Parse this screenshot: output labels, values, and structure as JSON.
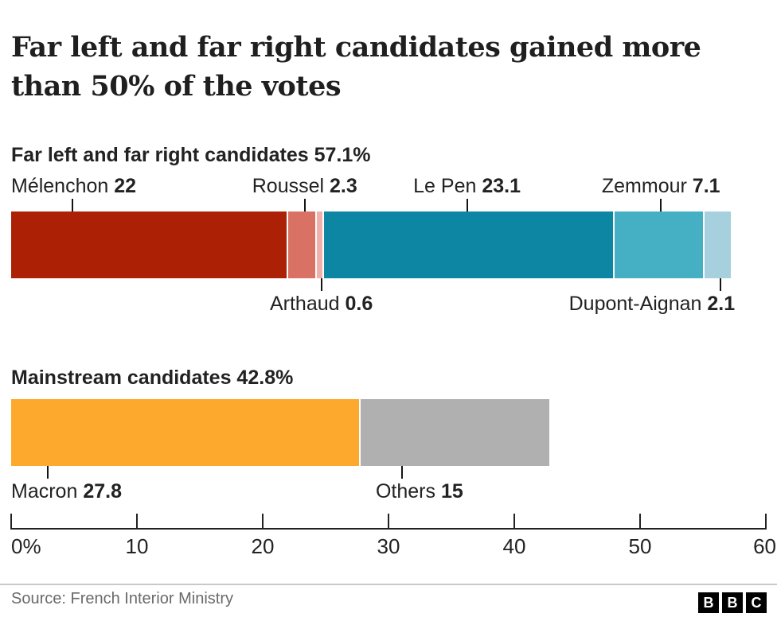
{
  "title_lines": [
    "Far left and far right candidates gained more",
    "than 50% of the votes"
  ],
  "chart_data": {
    "type": "bar",
    "stacked": true,
    "orientation": "horizontal",
    "x_axis": {
      "min": 0,
      "max": 60,
      "tick_values": [
        0,
        10,
        20,
        30,
        40,
        50,
        60
      ],
      "tick_labels": [
        "0%",
        "10",
        "20",
        "30",
        "40",
        "50",
        "60"
      ]
    },
    "groups": [
      {
        "heading": "Far left and far right candidates 57.1%",
        "total_pct": 57.1,
        "segments": [
          {
            "name": "Mélenchon",
            "value": 22,
            "display_value": "22",
            "color": "#ac2105",
            "label_side": "above",
            "label_anchor": "left",
            "label_pct": 0,
            "tick_pct": 8.1
          },
          {
            "name": "Roussel",
            "value": 2.3,
            "display_value": "2.3",
            "color": "#d97165",
            "label_side": "above",
            "label_anchor": "center",
            "label_pct": 38.9,
            "tick_pct": 38.9
          },
          {
            "name": "Arthaud",
            "value": 0.6,
            "display_value": "0.6",
            "color": "#f0b1ac",
            "label_side": "below",
            "label_anchor": "center",
            "label_pct": 41.1,
            "tick_pct": 41.1
          },
          {
            "name": "Le Pen",
            "value": 23.1,
            "display_value": "23.1",
            "color": "#0d86a4",
            "label_side": "above",
            "label_anchor": "center",
            "label_pct": 60.4,
            "tick_pct": 60.4
          },
          {
            "name": "Zemmour",
            "value": 7.1,
            "display_value": "7.1",
            "color": "#45afc4",
            "label_side": "above",
            "label_anchor": "center",
            "label_pct": 86.1,
            "tick_pct": 86.1
          },
          {
            "name": "Dupont-Aignan",
            "value": 2.1,
            "display_value": "2.1",
            "color": "#a6d0dd",
            "label_side": "below",
            "label_anchor": "right",
            "label_pct": 95.9,
            "tick_pct": 94.0
          }
        ]
      },
      {
        "heading": "Mainstream candidates 42.8%",
        "total_pct": 42.8,
        "segments": [
          {
            "name": "Macron",
            "value": 27.8,
            "display_value": "27.8",
            "color": "#fca92e",
            "label_side": "below",
            "label_anchor": "left",
            "label_pct": 0,
            "tick_pct": 4.9
          },
          {
            "name": "Others",
            "value": 15,
            "display_value": "15",
            "color": "#b0b0b0",
            "label_side": "below",
            "label_anchor": "center",
            "label_pct": 54.1,
            "tick_pct": 51.8
          }
        ]
      }
    ]
  },
  "footer": {
    "source": "Source: French Interior Ministry",
    "logo_letters": [
      "B",
      "B",
      "C"
    ]
  }
}
